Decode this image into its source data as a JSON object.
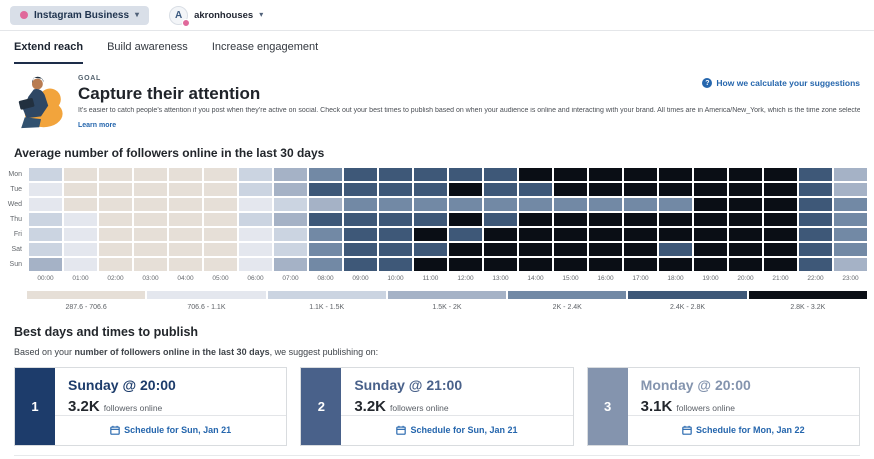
{
  "topbar": {
    "network_label": "Instagram Business",
    "account_name": "akronhouses",
    "avatar_letter": "A"
  },
  "tabs": [
    {
      "label": "Extend reach",
      "active": true
    },
    {
      "label": "Build awareness",
      "active": false
    },
    {
      "label": "Increase engagement",
      "active": false
    }
  ],
  "goal": {
    "eyebrow": "GOAL",
    "title": "Capture their attention",
    "description": "It’s easier to catch people’s attention if you post when they’re active on social. Check out your best times to publish based on when your audience is online and interacting with your brand. All times are in America/New_York, which is the time zone selected in your account settings.",
    "learn_more": "Learn more",
    "help_link": "How we calculate your suggestions"
  },
  "heatmap": {
    "title": "Average number of followers online in the last 30 days",
    "days": [
      "Mon",
      "Tue",
      "Wed",
      "Thu",
      "Fri",
      "Sat",
      "Sun"
    ],
    "hours": [
      "00:00",
      "01:00",
      "02:00",
      "03:00",
      "04:00",
      "05:00",
      "06:00",
      "07:00",
      "08:00",
      "09:00",
      "10:00",
      "11:00",
      "12:00",
      "13:00",
      "14:00",
      "15:00",
      "16:00",
      "17:00",
      "18:00",
      "19:00",
      "20:00",
      "21:00",
      "22:00",
      "23:00"
    ],
    "palette": [
      "#e6dfd7",
      "#e4e7ee",
      "#cbd4e1",
      "#a5b2c6",
      "#7289a5",
      "#3e5878",
      "#0a0e15"
    ],
    "legend": [
      {
        "label": "287.6 - 706.6",
        "color": "#e6dfd7"
      },
      {
        "label": "706.6 - 1.1K",
        "color": "#e4e7ee"
      },
      {
        "label": "1.1K - 1.5K",
        "color": "#cbd4e1"
      },
      {
        "label": "1.5K - 2K",
        "color": "#a5b2c6"
      },
      {
        "label": "2K - 2.4K",
        "color": "#7289a5"
      },
      {
        "label": "2.4K - 2.8K",
        "color": "#3e5878"
      },
      {
        "label": "2.8K - 3.2K",
        "color": "#0a0e15"
      }
    ],
    "grid": [
      [
        2,
        0,
        0,
        0,
        0,
        0,
        2,
        3,
        4,
        5,
        5,
        5,
        5,
        5,
        6,
        6,
        6,
        6,
        6,
        6,
        6,
        6,
        5,
        3
      ],
      [
        1,
        0,
        0,
        0,
        0,
        0,
        2,
        3,
        5,
        5,
        5,
        5,
        6,
        5,
        5,
        6,
        6,
        6,
        6,
        6,
        6,
        6,
        5,
        3
      ],
      [
        1,
        0,
        0,
        0,
        0,
        0,
        1,
        2,
        3,
        4,
        4,
        4,
        4,
        4,
        4,
        4,
        4,
        4,
        4,
        6,
        6,
        6,
        5,
        4
      ],
      [
        2,
        1,
        0,
        0,
        0,
        0,
        2,
        3,
        5,
        5,
        5,
        5,
        6,
        5,
        6,
        6,
        6,
        6,
        6,
        6,
        6,
        6,
        5,
        4
      ],
      [
        2,
        1,
        0,
        0,
        0,
        0,
        1,
        2,
        4,
        5,
        5,
        6,
        5,
        6,
        6,
        6,
        6,
        6,
        6,
        6,
        6,
        6,
        5,
        4
      ],
      [
        2,
        1,
        0,
        0,
        0,
        0,
        1,
        2,
        4,
        5,
        5,
        5,
        6,
        6,
        6,
        6,
        6,
        6,
        5,
        6,
        6,
        6,
        5,
        4
      ],
      [
        3,
        1,
        0,
        0,
        0,
        0,
        1,
        3,
        4,
        5,
        5,
        6,
        6,
        6,
        6,
        6,
        6,
        6,
        6,
        6,
        6,
        6,
        5,
        3
      ]
    ]
  },
  "best_times": {
    "title": "Best days and times to publish",
    "intro_prefix": "Based on your ",
    "intro_bold": "number of followers online in the last 30 days",
    "intro_suffix": ", we suggest publishing on:",
    "cards": [
      {
        "rank": "1",
        "title": "Sunday @ 20:00",
        "value": "3.2K",
        "value_suffix": "followers online",
        "cta": "Schedule for Sun, Jan 21",
        "accent": "#1d3c6b"
      },
      {
        "rank": "2",
        "title": "Sunday @ 21:00",
        "value": "3.2K",
        "value_suffix": "followers online",
        "cta": "Schedule for Sun, Jan 21",
        "accent": "#49618a"
      },
      {
        "rank": "3",
        "title": "Monday @ 20:00",
        "value": "3.1K",
        "value_suffix": "followers online",
        "cta": "Schedule for Mon, Jan 22",
        "accent": "#8494ae"
      }
    ]
  }
}
